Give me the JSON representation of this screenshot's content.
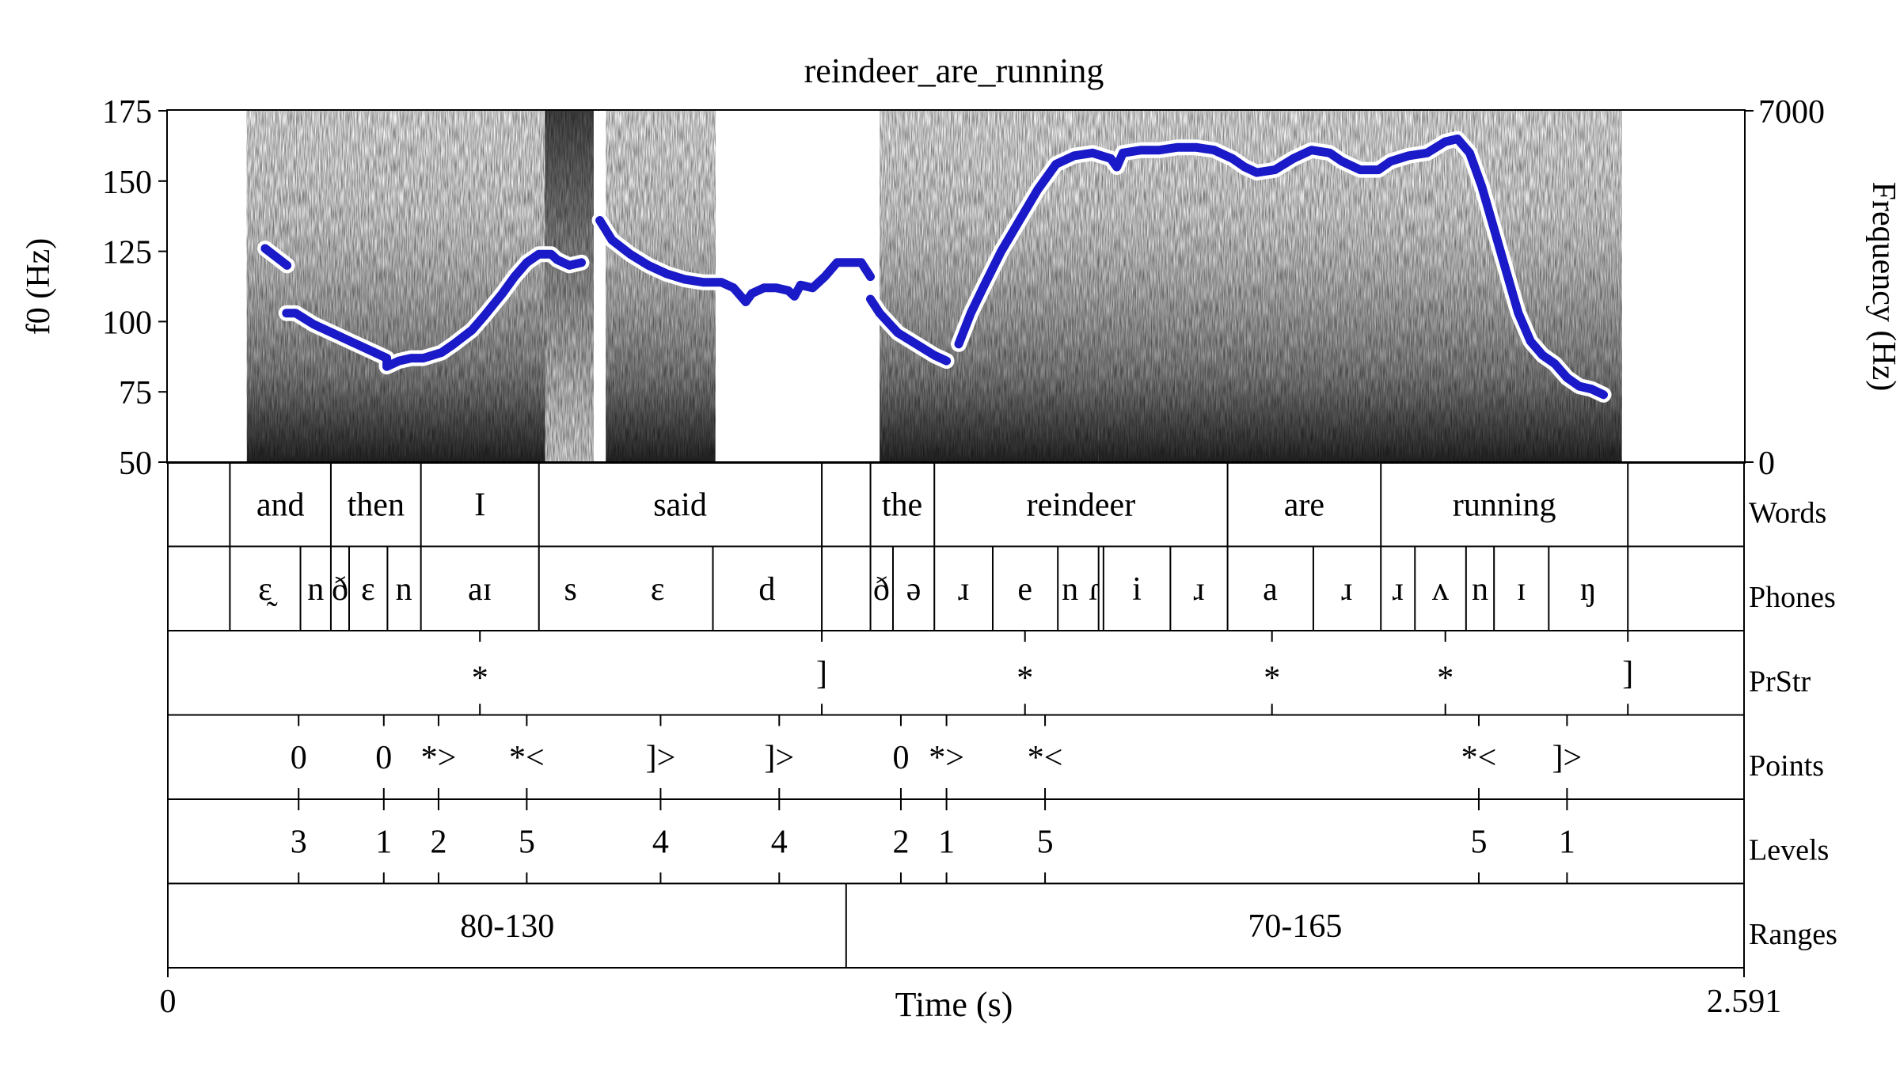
{
  "chart_data": {
    "type": "line",
    "title": "reindeer_are_running",
    "xlabel": "Time (s)",
    "ylabel_left": "f0 (Hz)",
    "ylabel_right": "Frequency (Hz)",
    "xlim": [
      0,
      2.591
    ],
    "ylim": [
      50,
      175
    ],
    "yticks": [
      50,
      75,
      100,
      125,
      150,
      175
    ],
    "ylim_right": [
      0,
      7000
    ],
    "x_tick_labels": [
      "0",
      "2.591"
    ],
    "right_tick_labels": [
      "7000",
      "0"
    ],
    "series": [
      {
        "color": "#1a1ac8",
        "segments": [
          [
            [
              0.16,
              126
            ],
            [
              0.19,
              121
            ],
            [
              0.196,
              120
            ]
          ],
          [
            [
              0.195,
              103
            ],
            [
              0.21,
              103
            ],
            [
              0.24,
              99
            ],
            [
              0.27,
              96
            ],
            [
              0.3,
              93
            ],
            [
              0.34,
              89
            ],
            [
              0.36,
              87
            ],
            [
              0.36,
              86
            ],
            [
              0.36,
              84
            ],
            [
              0.38,
              86
            ],
            [
              0.4,
              87
            ],
            [
              0.42,
              87
            ],
            [
              0.45,
              89
            ],
            [
              0.47,
              92
            ],
            [
              0.5,
              97
            ],
            [
              0.52,
              102
            ],
            [
              0.55,
              110
            ],
            [
              0.57,
              116
            ],
            [
              0.59,
              121
            ],
            [
              0.61,
              124
            ],
            [
              0.63,
              124
            ],
            [
              0.64,
              122
            ],
            [
              0.66,
              120
            ],
            [
              0.68,
              121
            ]
          ],
          [
            [
              0.71,
              136
            ],
            [
              0.73,
              129
            ],
            [
              0.76,
              124
            ],
            [
              0.79,
              120
            ],
            [
              0.82,
              117
            ],
            [
              0.85,
              115
            ],
            [
              0.88,
              114
            ],
            [
              0.91,
              114
            ],
            [
              0.93,
              112
            ],
            [
              0.95,
              107
            ],
            [
              0.96,
              110
            ],
            [
              0.98,
              112
            ],
            [
              1.0,
              112
            ],
            [
              1.02,
              111
            ],
            [
              1.03,
              109
            ],
            [
              1.04,
              113
            ],
            [
              1.06,
              112
            ],
            [
              1.08,
              116
            ],
            [
              1.1,
              121
            ],
            [
              1.12,
              121
            ],
            [
              1.14,
              121
            ],
            [
              1.155,
              116
            ]
          ],
          [
            [
              1.155,
              108
            ],
            [
              1.17,
              103
            ],
            [
              1.2,
              96
            ],
            [
              1.23,
              92
            ],
            [
              1.26,
              88
            ],
            [
              1.28,
              86
            ]
          ],
          [
            [
              1.3,
              92
            ],
            [
              1.32,
              103
            ],
            [
              1.34,
              112
            ],
            [
              1.37,
              125
            ],
            [
              1.4,
              136
            ],
            [
              1.43,
              147
            ],
            [
              1.46,
              156
            ],
            [
              1.49,
              159
            ],
            [
              1.52,
              160
            ],
            [
              1.55,
              158
            ],
            [
              1.56,
              155
            ],
            [
              1.57,
              160
            ],
            [
              1.6,
              161
            ],
            [
              1.63,
              161
            ],
            [
              1.66,
              162
            ],
            [
              1.69,
              162
            ],
            [
              1.72,
              161
            ],
            [
              1.75,
              158
            ],
            [
              1.77,
              155
            ],
            [
              1.79,
              153
            ],
            [
              1.82,
              154
            ],
            [
              1.85,
              158
            ],
            [
              1.88,
              161
            ],
            [
              1.91,
              160
            ],
            [
              1.93,
              157
            ],
            [
              1.96,
              154
            ],
            [
              1.99,
              154
            ],
            [
              2.01,
              157
            ],
            [
              2.04,
              159
            ],
            [
              2.07,
              160
            ],
            [
              2.1,
              164
            ],
            [
              2.12,
              165
            ],
            [
              2.14,
              160
            ],
            [
              2.16,
              148
            ],
            [
              2.18,
              133
            ],
            [
              2.2,
              118
            ],
            [
              2.22,
              103
            ],
            [
              2.24,
              93
            ],
            [
              2.26,
              88
            ],
            [
              2.28,
              85
            ],
            [
              2.3,
              80
            ],
            [
              2.32,
              77
            ],
            [
              2.34,
              76
            ],
            [
              2.36,
              74
            ]
          ]
        ]
      }
    ],
    "tiers": [
      {
        "name": "Words",
        "boundaries": [
          0.102,
          0.268,
          0.416,
          0.61,
          1.075,
          1.155,
          1.26,
          1.742,
          1.994,
          2.4
        ],
        "labels": [
          {
            "t": 0.185,
            "text": "and"
          },
          {
            "t": 0.342,
            "text": "then"
          },
          {
            "t": 0.513,
            "text": "I"
          },
          {
            "t": 0.842,
            "text": "said"
          },
          {
            "t": 1.207,
            "text": "the"
          },
          {
            "t": 1.501,
            "text": "reindeer"
          },
          {
            "t": 1.868,
            "text": "are"
          },
          {
            "t": 2.197,
            "text": "running"
          }
        ]
      },
      {
        "name": "Phones",
        "boundaries": [
          0.102,
          0.218,
          0.268,
          0.298,
          0.361,
          0.416,
          0.61,
          0.896,
          1.075,
          1.155,
          1.192,
          1.26,
          1.356,
          1.463,
          1.53,
          1.538,
          1.648,
          1.742,
          1.883,
          1.994,
          2.05,
          2.134,
          2.18,
          2.27,
          2.4
        ],
        "labels": [
          {
            "t": 0.16,
            "text": "ɛ̰"
          },
          {
            "t": 0.243,
            "text": "n"
          },
          {
            "t": 0.283,
            "text": "ð"
          },
          {
            "t": 0.329,
            "text": "ɛ"
          },
          {
            "t": 0.388,
            "text": "n"
          },
          {
            "t": 0.513,
            "text": "aɪ"
          },
          {
            "t": 0.662,
            "text": "s"
          },
          {
            "t": 0.805,
            "text": "ɛ"
          },
          {
            "t": 0.985,
            "text": "d"
          },
          {
            "t": 1.173,
            "text": "ð"
          },
          {
            "t": 1.226,
            "text": "ə"
          },
          {
            "t": 1.308,
            "text": "ɹ"
          },
          {
            "t": 1.409,
            "text": "e"
          },
          {
            "t": 1.483,
            "text": "n"
          },
          {
            "t": 1.523,
            "text": "ɾ"
          },
          {
            "t": 1.593,
            "text": "i"
          },
          {
            "t": 1.695,
            "text": "ɹ"
          },
          {
            "t": 1.812,
            "text": "a"
          },
          {
            "t": 1.938,
            "text": "ɹ"
          },
          {
            "t": 2.022,
            "text": "ɹ"
          },
          {
            "t": 2.092,
            "text": "ʌ"
          },
          {
            "t": 2.157,
            "text": "n"
          },
          {
            "t": 2.225,
            "text": "ɪ"
          },
          {
            "t": 2.335,
            "text": "ŋ"
          }
        ]
      },
      {
        "name": "PrStr",
        "points": [
          {
            "t": 0.513,
            "text": "*"
          },
          {
            "t": 1.075,
            "text": "]"
          },
          {
            "t": 1.409,
            "text": "*"
          },
          {
            "t": 1.815,
            "text": "*"
          },
          {
            "t": 2.1,
            "text": "*"
          },
          {
            "t": 2.4,
            "text": "]"
          }
        ]
      },
      {
        "name": "Points",
        "points": [
          {
            "t": 0.215,
            "text": "0"
          },
          {
            "t": 0.355,
            "text": "0"
          },
          {
            "t": 0.445,
            "text": "*>"
          },
          {
            "t": 0.59,
            "text": "*<"
          },
          {
            "t": 0.81,
            "text": "]>"
          },
          {
            "t": 1.005,
            "text": "]>"
          },
          {
            "t": 1.205,
            "text": "0"
          },
          {
            "t": 1.28,
            "text": "*>"
          },
          {
            "t": 1.442,
            "text": "*<"
          },
          {
            "t": 2.155,
            "text": "*<"
          },
          {
            "t": 2.3,
            "text": "]>"
          }
        ]
      },
      {
        "name": "Levels",
        "points": [
          {
            "t": 0.215,
            "text": "3"
          },
          {
            "t": 0.355,
            "text": "1"
          },
          {
            "t": 0.445,
            "text": "2"
          },
          {
            "t": 0.59,
            "text": "5"
          },
          {
            "t": 0.81,
            "text": "4"
          },
          {
            "t": 1.005,
            "text": "4"
          },
          {
            "t": 1.205,
            "text": "2"
          },
          {
            "t": 1.28,
            "text": "1"
          },
          {
            "t": 1.442,
            "text": "5"
          },
          {
            "t": 2.155,
            "text": "5"
          },
          {
            "t": 2.3,
            "text": "1"
          }
        ]
      },
      {
        "name": "Ranges",
        "boundaries": [
          1.115
        ],
        "labels": [
          {
            "t": 0.558,
            "text": "80-130"
          },
          {
            "t": 1.853,
            "text": "70-165"
          }
        ]
      }
    ],
    "spectrogram_segments": [
      {
        "t0": 0.13,
        "t1": 0.62,
        "kind": "voiced"
      },
      {
        "t0": 0.62,
        "t1": 0.7,
        "kind": "fricative"
      },
      {
        "t0": 0.72,
        "t1": 0.9,
        "kind": "voiced"
      },
      {
        "t0": 1.17,
        "t1": 1.53,
        "kind": "voiced"
      },
      {
        "t0": 1.53,
        "t1": 2.39,
        "kind": "voiced"
      }
    ]
  }
}
